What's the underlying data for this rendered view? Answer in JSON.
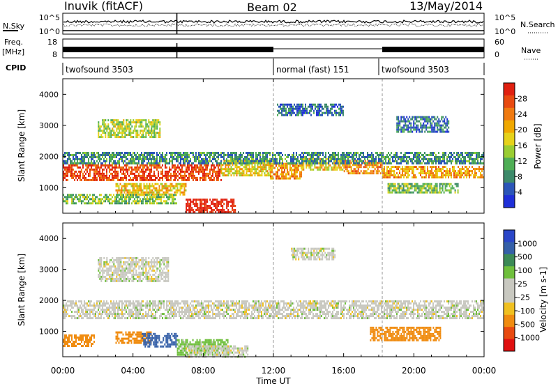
{
  "header": {
    "station": "Inuvik (fitACF)",
    "beam": "Beam 02",
    "date": "13/May/2014"
  },
  "summary_panels": {
    "nsky": {
      "label": "N.Sky",
      "ticks": [
        "10^5",
        "10^0"
      ],
      "right_label": "N.Search",
      "right_ticks": [
        "10^5",
        "10^0"
      ]
    },
    "freq": {
      "label": "Freq.",
      "unit": "[MHz]",
      "ticks": [
        "18",
        "8"
      ],
      "right_label": "Nave",
      "right_ticks": [
        "60",
        "0"
      ]
    },
    "cpid": {
      "label": "CPID",
      "segments": [
        {
          "name": "twofsound 3503",
          "start_h": 0,
          "end_h": 12
        },
        {
          "name": "normal (fast) 151",
          "start_h": 12,
          "end_h": 18
        },
        {
          "name": "twofsound 3503",
          "start_h": 18,
          "end_h": 24
        }
      ]
    }
  },
  "axes": {
    "xlabel": "Time UT",
    "x_ticks": [
      "00:00",
      "04:00",
      "08:00",
      "12:00",
      "16:00",
      "20:00",
      "00:00"
    ],
    "ylabel": "Slant Range [km]",
    "y_ticks": [
      "1000",
      "2000",
      "3000",
      "4000"
    ]
  },
  "colorbars": {
    "power": {
      "label": "Power [dB]",
      "ticks": [
        "4",
        "8",
        "12",
        "16",
        "20",
        "24",
        "28"
      ],
      "colors": [
        "#1f2fd8",
        "#2b55b8",
        "#3d8a6a",
        "#4fae56",
        "#9acd32",
        "#e6d21a",
        "#f0a800",
        "#f07a10",
        "#e84a10",
        "#e02010"
      ]
    },
    "velocity": {
      "label": "Velocity [m s-1]",
      "ticks": [
        "1000",
        "500",
        "100",
        "25",
        "-25",
        "-100",
        "-500",
        "-1000"
      ],
      "colors": [
        "#2a46c8",
        "#3560a8",
        "#3c8a56",
        "#6fbf3c",
        "#c8c8c0",
        "#c8c8c0",
        "#f0c020",
        "#f08c10",
        "#e84a10",
        "#e01010"
      ]
    }
  },
  "chart_data": [
    {
      "type": "heatmap",
      "title": "Power",
      "xlabel": "Time UT",
      "ylabel": "Slant Range [km]",
      "x_unit": "hours UT",
      "xlim": [
        0,
        24
      ],
      "ylim": [
        180,
        4500
      ],
      "value_label": "Power [dB]",
      "value_range": [
        0,
        30
      ],
      "regions": [
        {
          "x": [
            0,
            9.0
          ],
          "y": [
            1250,
            1750
          ],
          "value": 26
        },
        {
          "x": [
            9.0,
            11.8
          ],
          "y": [
            1400,
            1900
          ],
          "value": 17
        },
        {
          "x": [
            11.8,
            13.6
          ],
          "y": [
            1300,
            1800
          ],
          "value": 21
        },
        {
          "x": [
            13.6,
            16.0
          ],
          "y": [
            1550,
            1950
          ],
          "value": 18
        },
        {
          "x": [
            16.0,
            18.2
          ],
          "y": [
            1450,
            1900
          ],
          "value": 22
        },
        {
          "x": [
            18.2,
            24
          ],
          "y": [
            1300,
            1700
          ],
          "value": 20
        },
        {
          "x": [
            0,
            24
          ],
          "y": [
            1800,
            2150
          ],
          "value": 8
        },
        {
          "x": [
            7.0,
            9.8
          ],
          "y": [
            180,
            650
          ],
          "value": 29
        },
        {
          "x": [
            3.0,
            7.0
          ],
          "y": [
            800,
            1150
          ],
          "value": 18
        },
        {
          "x": [
            0,
            6.5
          ],
          "y": [
            500,
            800
          ],
          "value": 12
        },
        {
          "x": [
            2.0,
            5.5
          ],
          "y": [
            2600,
            3200
          ],
          "value": 14
        },
        {
          "x": [
            12.2,
            16.0
          ],
          "y": [
            3300,
            3700
          ],
          "value": 6
        },
        {
          "x": [
            18.5,
            22.5
          ],
          "y": [
            850,
            1150
          ],
          "value": 12
        },
        {
          "x": [
            19.0,
            22.0
          ],
          "y": [
            2800,
            3300
          ],
          "value": 6
        }
      ]
    },
    {
      "type": "heatmap",
      "title": "Velocity",
      "xlabel": "Time UT",
      "ylabel": "Slant Range [km]",
      "x_unit": "hours UT",
      "xlim": [
        0,
        24
      ],
      "ylim": [
        180,
        4500
      ],
      "value_label": "Velocity [m s-1]",
      "regions": [
        {
          "x": [
            0,
            24
          ],
          "y": [
            1400,
            2000
          ],
          "value": 0
        },
        {
          "x": [
            0,
            1.8
          ],
          "y": [
            500,
            900
          ],
          "value": -200
        },
        {
          "x": [
            3.0,
            5.0
          ],
          "y": [
            650,
            1000
          ],
          "value": -250
        },
        {
          "x": [
            4.5,
            6.5
          ],
          "y": [
            500,
            950
          ],
          "value": 300
        },
        {
          "x": [
            6.5,
            9.5
          ],
          "y": [
            250,
            750
          ],
          "value": 50
        },
        {
          "x": [
            7.0,
            10.5
          ],
          "y": [
            180,
            550
          ],
          "value": 0
        },
        {
          "x": [
            17.5,
            21.5
          ],
          "y": [
            700,
            1150
          ],
          "value": -300
        },
        {
          "x": [
            2.0,
            6.0
          ],
          "y": [
            2600,
            3400
          ],
          "value": 0
        },
        {
          "x": [
            13.0,
            15.5
          ],
          "y": [
            3300,
            3700
          ],
          "value": 0
        }
      ]
    }
  ]
}
